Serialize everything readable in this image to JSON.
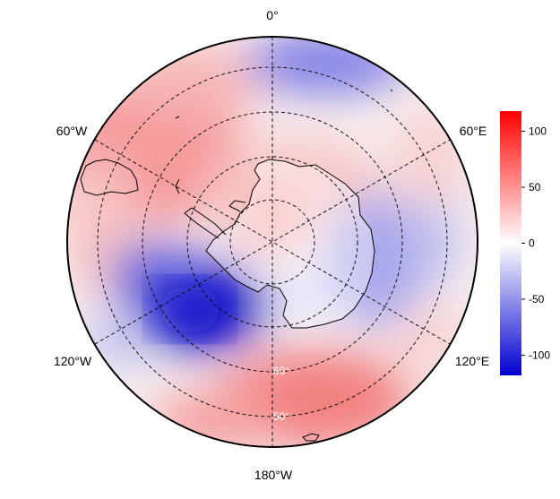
{
  "map": {
    "projection": "south polar stereographic",
    "field_pattern": {
      "description_units": "anomaly",
      "positive_regions": [
        "0° to 60°W mid-latitudes",
        "180°W sector",
        "coastal Antarctic Peninsula"
      ],
      "negative_regions": [
        "Amundsen–Bellingshausen Sea sector (~120°W)",
        "East Antarctica interior (60°E–120°E)",
        "near 0° mid-latitudes"
      ]
    },
    "longitude_labels": [
      {
        "text": "0°"
      },
      {
        "text": "60°E"
      },
      {
        "text": "120°E"
      },
      {
        "text": "180°W"
      },
      {
        "text": "120°W"
      },
      {
        "text": "60°W"
      }
    ],
    "latitude_labels": [
      {
        "text": "50°"
      },
      {
        "text": "60°"
      }
    ]
  },
  "colorbar": {
    "min": -118,
    "max": 118,
    "ticks": [
      {
        "label": "100",
        "value": 100
      },
      {
        "label": "50",
        "value": 50
      },
      {
        "label": "0",
        "value": 0
      },
      {
        "label": "-50",
        "value": -50
      },
      {
        "label": "-100",
        "value": -100
      }
    ],
    "colors": {
      "low": "#0000d0",
      "mid": "#ffffff",
      "high": "#ff0000"
    }
  }
}
